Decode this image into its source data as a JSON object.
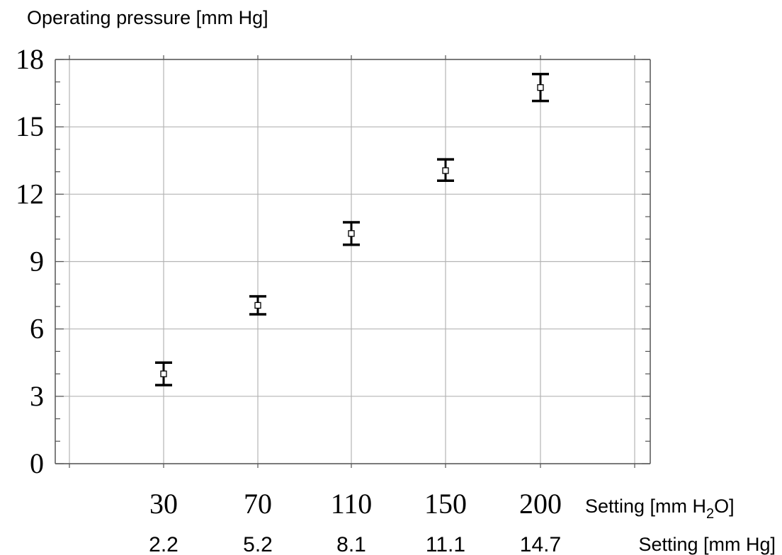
{
  "chart_data": {
    "type": "scatter",
    "ylabel": "Operating pressure [mm Hg]",
    "xlabel_primary": {
      "pre": "Setting [mm H",
      "sub": "2",
      "post": "O]"
    },
    "xlabel_secondary": "Setting [mm Hg]",
    "ylim": [
      0,
      18
    ],
    "yticks": [
      "0",
      "3",
      "6",
      "9",
      "12",
      "15",
      "18"
    ],
    "categories": [
      "30",
      "70",
      "110",
      "150",
      "200"
    ],
    "secondary_categories": [
      "2.2",
      "5.2",
      "8.1",
      "11.1",
      "14.7"
    ],
    "series": [
      {
        "values": [
          4.0,
          7.05,
          10.25,
          13.05,
          16.75
        ],
        "error_low": [
          3.5,
          6.65,
          9.75,
          12.6,
          16.15
        ],
        "error_high": [
          4.5,
          7.45,
          10.75,
          13.55,
          17.35
        ]
      }
    ],
    "grid": true,
    "colors": {
      "grid": "#b4b4b4",
      "marks": "#000000",
      "frame": "#555555"
    }
  }
}
